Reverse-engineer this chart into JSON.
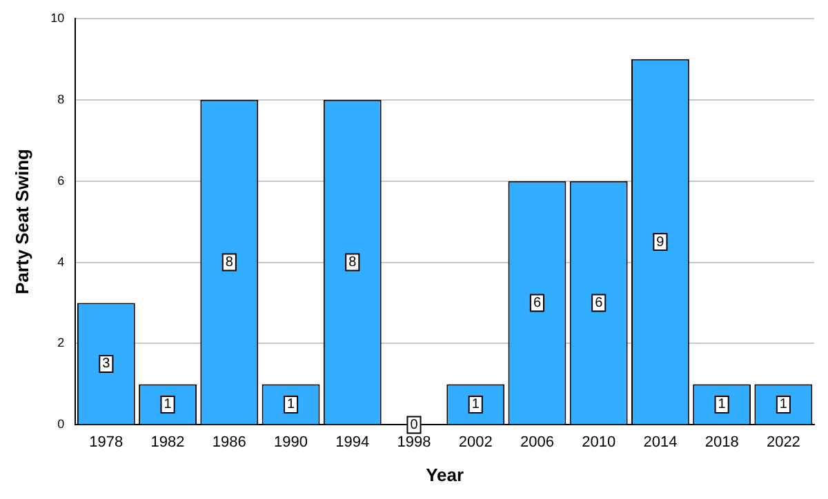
{
  "chart_data": {
    "type": "bar",
    "xlabel": "Year",
    "ylabel": "Party Seat Swing",
    "categories": [
      "1978",
      "1982",
      "1986",
      "1990",
      "1994",
      "1998",
      "2002",
      "2006",
      "2010",
      "2014",
      "2018",
      "2022"
    ],
    "values": [
      3,
      1,
      8,
      1,
      8,
      0,
      1,
      6,
      6,
      9,
      1,
      1
    ],
    "color": "#33adff",
    "ylim": [
      0,
      10
    ],
    "yticks": [
      0,
      2,
      4,
      6,
      8,
      10
    ],
    "grid": "y",
    "data_labels": true
  }
}
